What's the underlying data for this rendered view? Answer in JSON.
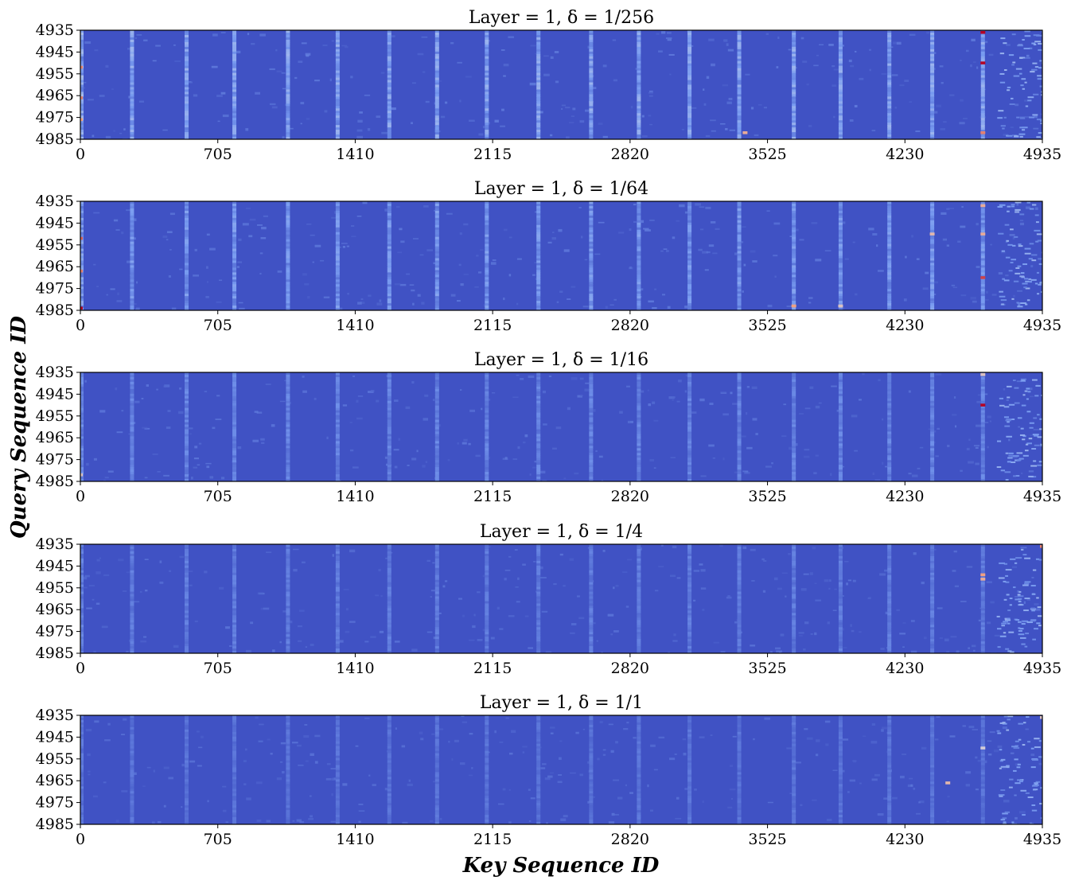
{
  "figure": {
    "xlabel": "Key Sequence ID",
    "ylabel": "Query Sequence ID"
  },
  "chart_data": [
    {
      "type": "heatmap",
      "title": "Layer = 1,   δ = 1/256",
      "layer": "1",
      "delta": "1/256",
      "x_ticks": [
        "0",
        "705",
        "1410",
        "2115",
        "2820",
        "3525",
        "4230",
        "4935"
      ],
      "y_ticks": [
        "4935",
        "4945",
        "4955",
        "4965",
        "4975",
        "4985"
      ],
      "xlim": [
        0,
        4935
      ],
      "ylim": [
        4935,
        4985
      ],
      "colormap": "coolwarm",
      "hot_spots": [
        {
          "x": 4630,
          "y": 4936,
          "level": 1.0
        },
        {
          "x": 4630,
          "y": 4950,
          "level": 1.0
        },
        {
          "x": 4630,
          "y": 4982,
          "level": 0.8
        },
        {
          "x": 0,
          "y": 4952,
          "level": 0.8
        },
        {
          "x": 0,
          "y": 4966,
          "level": 0.8
        },
        {
          "x": 0,
          "y": 4976,
          "level": 0.75
        },
        {
          "x": 3410,
          "y": 4982,
          "level": 0.7
        }
      ]
    },
    {
      "type": "heatmap",
      "title": "Layer = 1,   δ = 1/64",
      "layer": "1",
      "delta": "1/64",
      "x_ticks": [
        "0",
        "705",
        "1410",
        "2115",
        "2820",
        "3525",
        "4230",
        "4935"
      ],
      "y_ticks": [
        "4935",
        "4945",
        "4955",
        "4965",
        "4975",
        "4985"
      ],
      "xlim": [
        0,
        4935
      ],
      "ylim": [
        4935,
        4985
      ],
      "colormap": "coolwarm",
      "hot_spots": [
        {
          "x": 4630,
          "y": 4937,
          "level": 0.7
        },
        {
          "x": 4630,
          "y": 4950,
          "level": 0.7
        },
        {
          "x": 4630,
          "y": 4970,
          "level": 0.9
        },
        {
          "x": 4370,
          "y": 4950,
          "level": 0.65
        },
        {
          "x": 0,
          "y": 4952,
          "level": 0.85
        },
        {
          "x": 0,
          "y": 4967,
          "level": 0.8
        },
        {
          "x": 0,
          "y": 4984,
          "level": 1.0
        },
        {
          "x": 3660,
          "y": 4983,
          "level": 0.75
        },
        {
          "x": 3900,
          "y": 4983,
          "level": 0.6
        }
      ]
    },
    {
      "type": "heatmap",
      "title": "Layer = 1,   δ = 1/16",
      "layer": "1",
      "delta": "1/16",
      "x_ticks": [
        "0",
        "705",
        "1410",
        "2115",
        "2820",
        "3525",
        "4230",
        "4935"
      ],
      "y_ticks": [
        "4935",
        "4945",
        "4955",
        "4965",
        "4975",
        "4985"
      ],
      "xlim": [
        0,
        4935
      ],
      "ylim": [
        4935,
        4985
      ],
      "colormap": "coolwarm",
      "hot_spots": [
        {
          "x": 4630,
          "y": 4936,
          "level": 0.6
        },
        {
          "x": 4630,
          "y": 4950,
          "level": 1.0
        },
        {
          "x": 0,
          "y": 4982,
          "level": 0.6
        }
      ]
    },
    {
      "type": "heatmap",
      "title": "Layer = 1,   δ = 1/4",
      "layer": "1",
      "delta": "1/4",
      "x_ticks": [
        "0",
        "705",
        "1410",
        "2115",
        "2820",
        "3525",
        "4230",
        "4935"
      ],
      "y_ticks": [
        "4935",
        "4945",
        "4955",
        "4965",
        "4975",
        "4985"
      ],
      "xlim": [
        0,
        4935
      ],
      "ylim": [
        4935,
        4985
      ],
      "colormap": "coolwarm",
      "hot_spots": [
        {
          "x": 4935,
          "y": 4936,
          "level": 0.8
        },
        {
          "x": 4630,
          "y": 4949,
          "level": 0.75
        },
        {
          "x": 4630,
          "y": 4951,
          "level": 0.7
        }
      ]
    },
    {
      "type": "heatmap",
      "title": "Layer = 1,   δ = 1/1",
      "layer": "1",
      "delta": "1/1",
      "x_ticks": [
        "0",
        "705",
        "1410",
        "2115",
        "2820",
        "3525",
        "4230",
        "4935"
      ],
      "y_ticks": [
        "4935",
        "4945",
        "4955",
        "4965",
        "4975",
        "4985"
      ],
      "xlim": [
        0,
        4935
      ],
      "ylim": [
        4935,
        4985
      ],
      "colormap": "coolwarm",
      "hot_spots": [
        {
          "x": 4935,
          "y": 4936,
          "level": 0.6
        },
        {
          "x": 4630,
          "y": 4950,
          "level": 0.55
        },
        {
          "x": 4450,
          "y": 4966,
          "level": 0.65
        }
      ]
    }
  ]
}
